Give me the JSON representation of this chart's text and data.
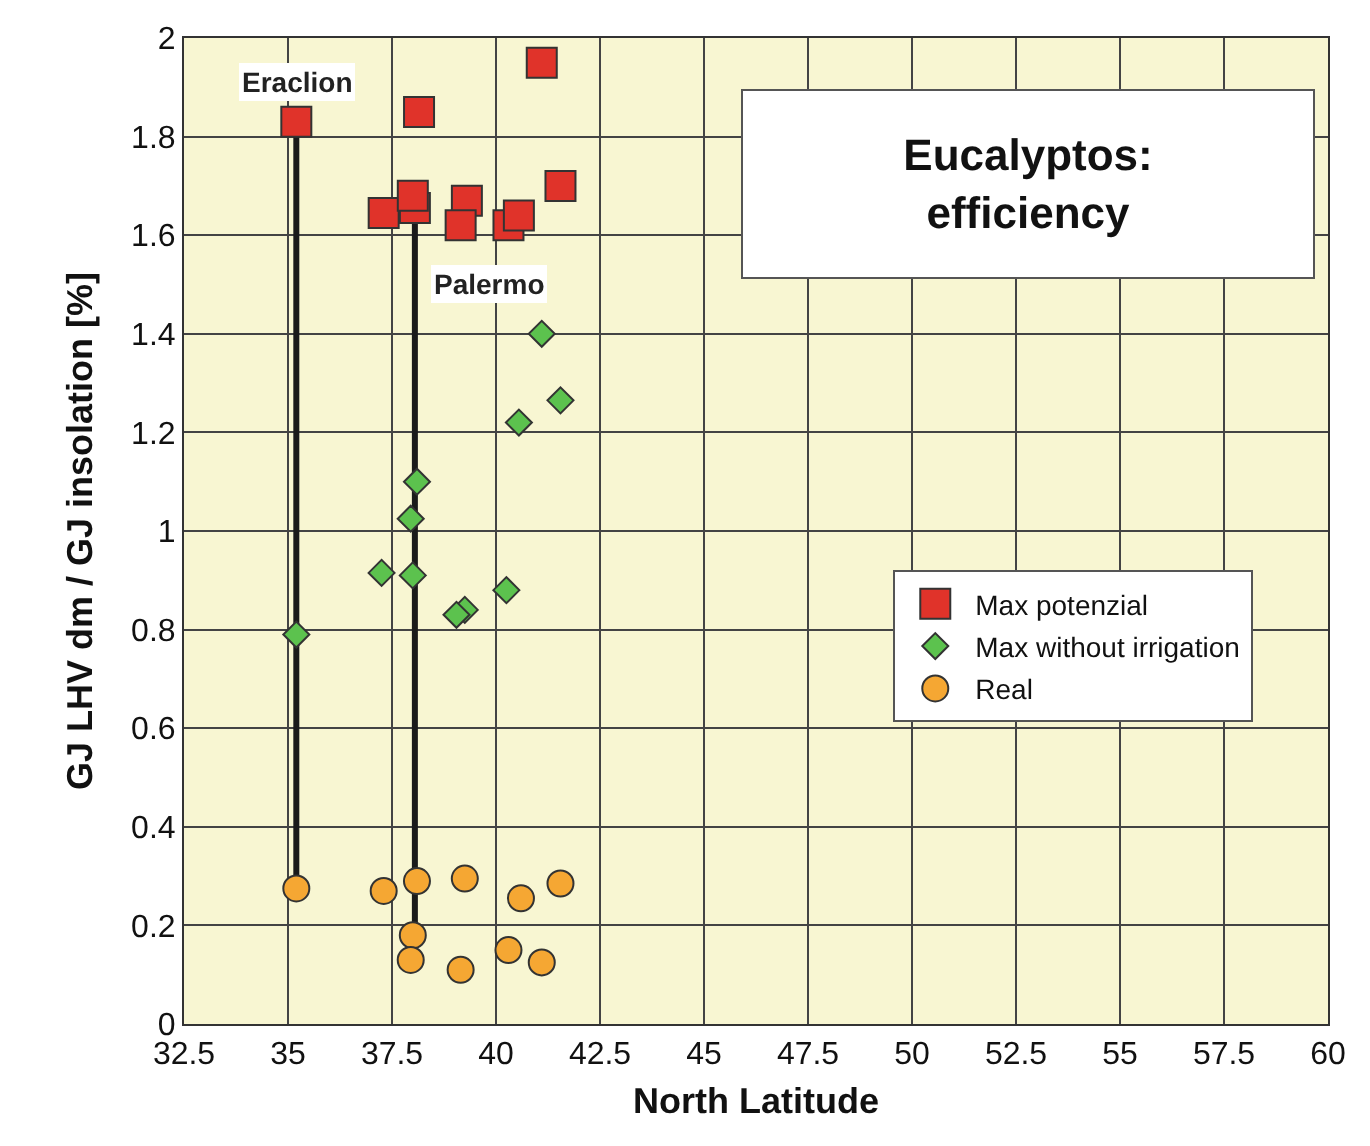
{
  "chart_data": {
    "type": "scatter",
    "title": "Eucalyptos: efficiency",
    "xlabel": "North Latitude",
    "ylabel": "GJ LHV dm / GJ insolation [%]",
    "xlim": [
      32.5,
      60
    ],
    "xticks": [
      32.5,
      35,
      37.5,
      40,
      42.5,
      45,
      47.5,
      50,
      52.5,
      55,
      57.5,
      60
    ],
    "ylim": [
      0,
      2
    ],
    "yticks": [
      0,
      0.2,
      0.4,
      0.6,
      0.8,
      1,
      1.2,
      1.4,
      1.6,
      1.8,
      2
    ],
    "grid": true,
    "legend": "right",
    "annotations": [
      {
        "text": "Eraclion",
        "x": 35.2,
        "y": 1.83
      },
      {
        "text": "Palermo",
        "x": 38.05,
        "y": 1.5
      }
    ],
    "series": [
      {
        "type": "line",
        "color": "#1a1a1a",
        "marker": "none",
        "x": [
          35.2,
          35.2
        ],
        "values": [
          0.275,
          1.83
        ]
      },
      {
        "type": "line",
        "color": "#1a1a1a",
        "marker": "none",
        "x": [
          38.05,
          38.05
        ],
        "values": [
          0.18,
          1.655
        ]
      },
      {
        "name": "Max potenzial",
        "color": "#e0332a",
        "marker": "square",
        "x": [
          35.2,
          38.15,
          41.1,
          37.3,
          38.05,
          38.0,
          39.3,
          39.15,
          40.3,
          40.55,
          41.55
        ],
        "values": [
          1.83,
          1.85,
          1.95,
          1.645,
          1.655,
          1.68,
          1.67,
          1.62,
          1.62,
          1.64,
          1.7
        ]
      },
      {
        "name": "Max without irrigation",
        "color": "#5cc24e",
        "marker": "diamond",
        "x": [
          41.1,
          41.55,
          40.55,
          38.1,
          37.95,
          37.25,
          38.0,
          40.25,
          39.25,
          39.05,
          35.2
        ],
        "values": [
          1.4,
          1.265,
          1.22,
          1.1,
          1.025,
          0.915,
          0.91,
          0.88,
          0.84,
          0.83,
          0.79
        ]
      },
      {
        "name": "Real",
        "color": "#f5a733",
        "marker": "circle",
        "x": [
          35.2,
          37.3,
          38.1,
          39.25,
          40.6,
          41.55,
          38.0,
          37.95,
          39.15,
          40.3,
          41.1
        ],
        "values": [
          0.275,
          0.27,
          0.29,
          0.295,
          0.255,
          0.285,
          0.18,
          0.13,
          0.11,
          0.15,
          0.125
        ]
      }
    ]
  }
}
